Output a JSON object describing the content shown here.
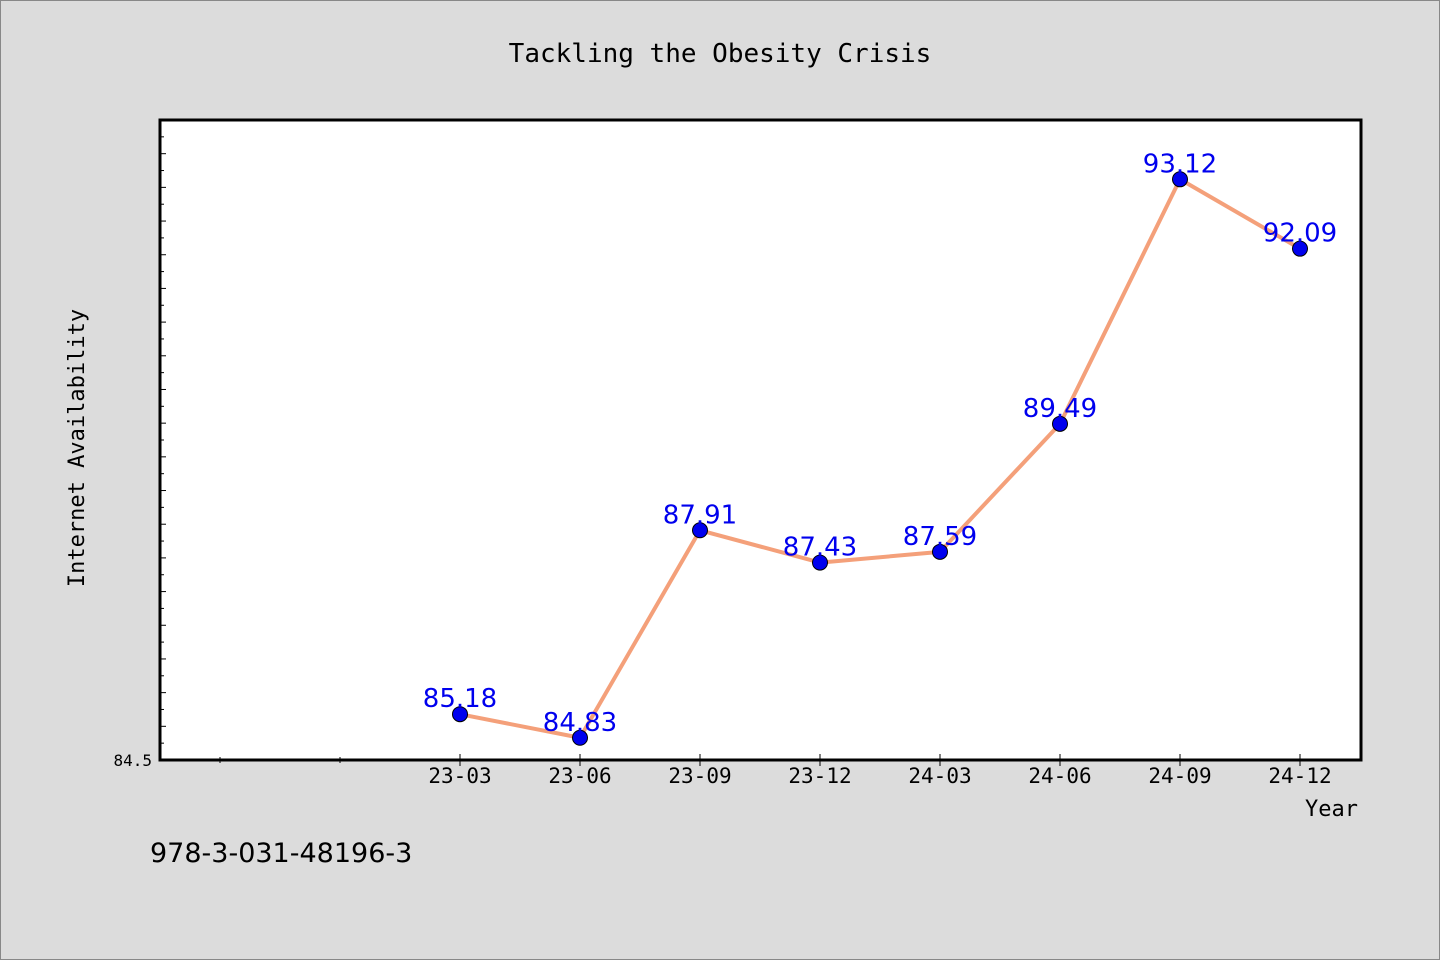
{
  "chart_data": {
    "type": "line",
    "title": "Tackling the Obesity Crisis",
    "xlabel": "Year",
    "ylabel": "Internet Availability",
    "categories": [
      "23-03",
      "23-06",
      "23-09",
      "23-12",
      "24-03",
      "24-06",
      "24-09",
      "24-12"
    ],
    "series": [
      {
        "values": [
          85.18,
          84.83,
          87.91,
          87.43,
          87.59,
          89.49,
          93.12,
          92.09
        ],
        "line_color": "#f4a07a",
        "marker_color": "#0000ee"
      }
    ],
    "data_labels": [
      "85.18",
      "84.83",
      "87.91",
      "87.43",
      "87.59",
      "89.49",
      "93.12",
      "92.09"
    ],
    "ylim": [
      84.5,
      94.0
    ],
    "y_tick_label": "84.5",
    "grid": false,
    "legend": "none",
    "label_color": "#0000ee"
  },
  "footer": {
    "isbn": "978-3-031-48196-3"
  }
}
